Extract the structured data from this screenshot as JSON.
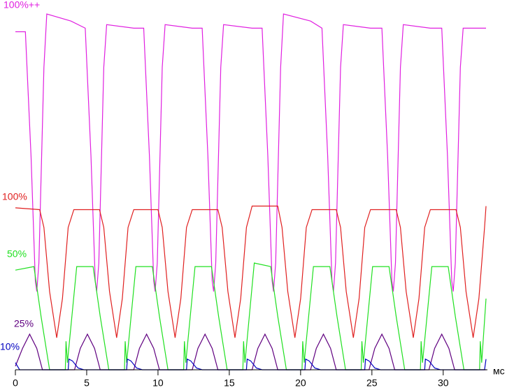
{
  "chart_data": {
    "type": "line",
    "x_label": "мс",
    "xlim": [
      0,
      33.1
    ],
    "xticks": [
      0,
      5,
      10,
      15,
      20,
      25,
      30
    ],
    "ylim": [
      0,
      100
    ],
    "series": [
      {
        "name": "100%++",
        "color": "#e020e0",
        "x": [
          0,
          0.7,
          1.1,
          1.4,
          1.5,
          1.65,
          2.0,
          2.2,
          3.9,
          4.9,
          5.3,
          5.6,
          5.7,
          5.85,
          6.2,
          6.4,
          8.3,
          9.0,
          9.4,
          9.7,
          9.8,
          9.95,
          10.3,
          10.5,
          12.4,
          13.1,
          13.5,
          13.8,
          13.9,
          14.05,
          14.4,
          14.6,
          16.6,
          17.3,
          17.7,
          18.0,
          18.1,
          18.25,
          18.6,
          18.8,
          20.7,
          21.5,
          21.9,
          22.2,
          22.3,
          22.45,
          22.8,
          23.0,
          24.9,
          25.7,
          26.1,
          26.4,
          26.5,
          26.65,
          27.0,
          27.2,
          29.1,
          29.9,
          30.3,
          30.6,
          30.7,
          30.85,
          31.2,
          31.4,
          33.0
        ],
        "values": [
          95,
          95,
          60,
          25,
          22,
          30,
          85,
          100,
          98,
          96,
          60,
          25,
          22,
          30,
          85,
          97,
          96,
          96,
          60,
          25,
          22,
          30,
          85,
          97,
          96,
          96,
          60,
          25,
          22,
          30,
          85,
          97,
          96,
          96,
          60,
          25,
          22,
          30,
          85,
          100,
          98,
          96,
          60,
          25,
          22,
          30,
          85,
          97,
          96,
          96,
          60,
          25,
          22,
          30,
          85,
          97,
          96,
          96,
          60,
          25,
          22,
          30,
          85,
          96,
          96
        ]
      },
      {
        "name": "100%",
        "color": "#e02020",
        "x": [
          0,
          1.7,
          2.0,
          2.4,
          2.9,
          3.3,
          3.7,
          4.1,
          5.9,
          6.2,
          6.6,
          7.1,
          7.5,
          7.9,
          8.3,
          10.0,
          10.3,
          10.7,
          11.2,
          11.6,
          12.0,
          12.4,
          14.2,
          14.5,
          14.9,
          15.4,
          15.8,
          16.2,
          16.6,
          18.4,
          18.7,
          19.1,
          19.6,
          20.0,
          20.4,
          20.8,
          22.5,
          22.8,
          23.2,
          23.7,
          24.1,
          24.5,
          24.9,
          26.7,
          27.0,
          27.4,
          27.9,
          28.3,
          28.7,
          29.1,
          30.9,
          31.2,
          31.6,
          32.1,
          32.5,
          32.9,
          33.0
        ],
        "values": [
          45.5,
          45,
          40,
          22,
          9,
          20,
          40,
          45,
          45,
          40,
          22,
          9,
          20,
          40,
          45,
          45,
          40,
          22,
          9,
          20,
          40,
          45,
          45,
          40,
          22,
          9,
          20,
          40,
          46,
          46,
          40,
          22,
          9,
          20,
          40,
          45,
          45,
          40,
          22,
          9,
          20,
          40,
          45,
          45,
          40,
          22,
          9,
          20,
          40,
          45,
          45,
          40,
          22,
          9,
          20,
          40,
          46
        ]
      },
      {
        "name": "50%",
        "color": "#20e020",
        "x": [
          0,
          1.3,
          1.8,
          2.4,
          3.5,
          3.55,
          3.65,
          4.3,
          5.45,
          5.95,
          6.55,
          7.65,
          7.7,
          7.8,
          8.45,
          9.6,
          10.1,
          10.7,
          11.8,
          11.85,
          11.95,
          12.6,
          13.75,
          14.25,
          14.85,
          15.95,
          16.0,
          16.1,
          16.75,
          17.9,
          18.4,
          19.0,
          20.1,
          20.15,
          20.25,
          20.9,
          22.05,
          22.55,
          23.15,
          24.25,
          24.3,
          24.4,
          25.05,
          26.2,
          26.7,
          27.3,
          28.4,
          28.45,
          28.55,
          29.2,
          30.35,
          30.85,
          31.45,
          32.55,
          32.6,
          32.7,
          33.0
        ],
        "values": [
          28,
          29,
          15,
          0,
          0,
          8,
          2,
          29,
          29,
          15,
          0,
          0,
          8,
          2,
          29,
          29,
          15,
          0,
          0,
          8,
          2,
          29,
          29,
          15,
          0,
          0,
          8,
          2,
          30,
          29,
          15,
          0,
          0,
          8,
          2,
          29,
          29,
          15,
          0,
          0,
          8,
          2,
          29,
          29,
          15,
          0,
          0,
          8,
          2,
          29,
          29,
          15,
          0,
          0,
          8,
          2,
          20
        ]
      },
      {
        "name": "25%",
        "color": "#600080",
        "x": [
          0,
          0.5,
          1.0,
          1.5,
          1.9,
          4.15,
          4.55,
          5.05,
          5.55,
          5.95,
          8.3,
          8.7,
          9.2,
          9.7,
          10.1,
          12.4,
          12.8,
          13.3,
          13.8,
          14.2,
          16.6,
          17.0,
          17.5,
          18.0,
          18.4,
          20.7,
          21.1,
          21.6,
          22.1,
          22.5,
          24.8,
          25.2,
          25.7,
          26.2,
          26.6,
          29.0,
          29.4,
          29.9,
          30.4,
          30.8,
          33.0
        ],
        "values": [
          1,
          6,
          10,
          6,
          0,
          0,
          6,
          10,
          6,
          0,
          0,
          6,
          10,
          6,
          0,
          0,
          6,
          10,
          6,
          0,
          0,
          6,
          10,
          6,
          0,
          0,
          6,
          10,
          6,
          0,
          0,
          6,
          10,
          6,
          0,
          0,
          6,
          10,
          6,
          0,
          0
        ]
      },
      {
        "name": "10%",
        "color": "#0000c0",
        "x": [
          0,
          0.3,
          3.7,
          3.75,
          4.0,
          4.4,
          4.8,
          7.8,
          7.85,
          8.1,
          8.5,
          8.9,
          12.0,
          12.05,
          12.3,
          12.7,
          13.1,
          16.2,
          16.25,
          16.5,
          16.9,
          17.3,
          20.3,
          20.35,
          20.6,
          21.0,
          21.4,
          24.5,
          24.55,
          24.8,
          25.2,
          25.6,
          28.7,
          28.75,
          29.0,
          29.4,
          29.8,
          32.9,
          33.0
        ],
        "values": [
          2,
          0,
          0,
          3,
          2.5,
          0.5,
          0,
          0,
          3,
          2.5,
          0.5,
          0,
          0,
          3,
          2.5,
          0.5,
          0,
          0,
          3,
          2.5,
          0.5,
          0,
          0,
          3,
          2.5,
          0.5,
          0,
          0,
          3,
          2.5,
          0.5,
          0,
          0,
          3,
          2.5,
          0.5,
          0,
          0,
          3
        ]
      }
    ]
  }
}
